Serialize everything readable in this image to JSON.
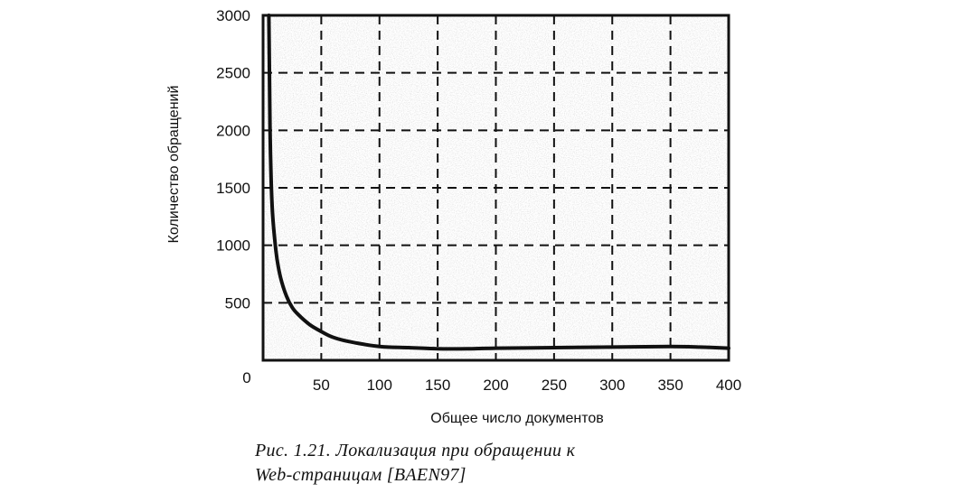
{
  "chart_data": {
    "type": "line",
    "xlabel": "Общее число документов",
    "ylabel": "Количество обращений",
    "xlim": [
      0,
      400
    ],
    "ylim": [
      0,
      3000
    ],
    "x_ticks": [
      50,
      100,
      150,
      200,
      250,
      300,
      350,
      400
    ],
    "y_ticks": [
      500,
      1000,
      1500,
      2000,
      2500,
      3000
    ],
    "origin_label": "0",
    "grid": true,
    "grid_style": "dashed",
    "series": [
      {
        "x": [
          5,
          6,
          7,
          8,
          10,
          12,
          15,
          20,
          25,
          30,
          40,
          50,
          60,
          75,
          100,
          125,
          150,
          175,
          200,
          250,
          300,
          350,
          375,
          400
        ],
        "y": [
          3000,
          2000,
          1550,
          1300,
          1050,
          880,
          720,
          560,
          460,
          400,
          310,
          250,
          200,
          160,
          120,
          110,
          100,
          100,
          105,
          110,
          115,
          120,
          115,
          105
        ]
      }
    ]
  },
  "caption": {
    "line1": "Рис. 1.21. Локализация при обращении к",
    "line2": "Web-страницам [BAEN97]"
  },
  "colors": {
    "ink": "#111111",
    "grid": "#111111",
    "background": "#ffffff"
  }
}
